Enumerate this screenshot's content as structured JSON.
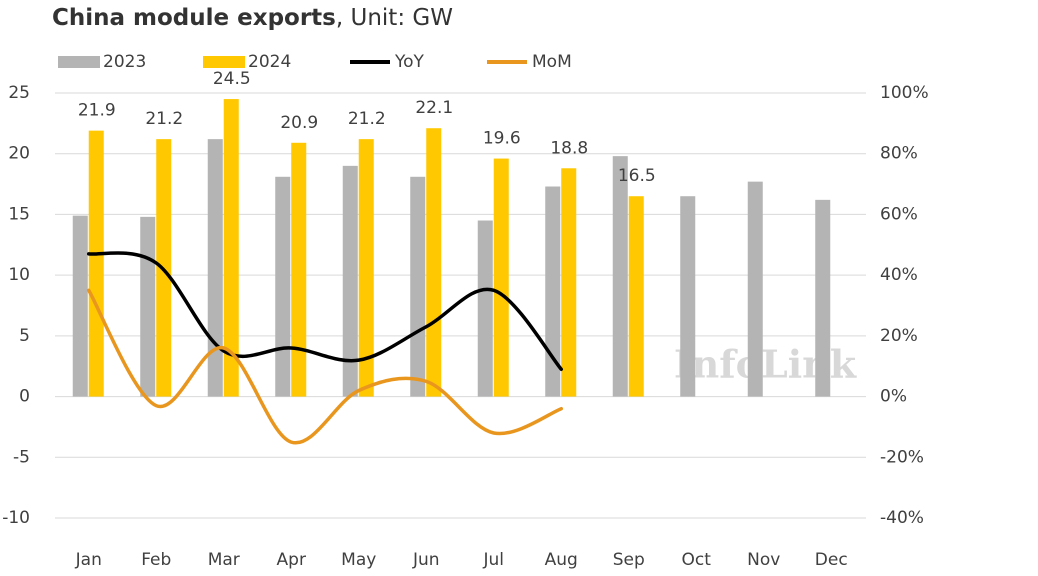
{
  "chart_data": {
    "type": "bar_line",
    "title": "China module exports",
    "title_unit": ", Unit: GW",
    "watermark": "InfoLink",
    "categories": [
      "Jan",
      "Feb",
      "Mar",
      "Apr",
      "May",
      "Jun",
      "Jul",
      "Aug",
      "Sep",
      "Oct",
      "Nov",
      "Dec"
    ],
    "series": [
      {
        "name": "2023",
        "type": "bar",
        "color": "#b4b4b4",
        "values": [
          14.9,
          14.8,
          21.2,
          18.1,
          19.0,
          18.1,
          14.5,
          17.3,
          19.8,
          16.5,
          17.7,
          16.2
        ]
      },
      {
        "name": "2024",
        "type": "bar",
        "color": "#ffc800",
        "data_labels": true,
        "values": [
          21.9,
          21.2,
          24.5,
          20.9,
          21.2,
          22.1,
          19.6,
          18.8,
          16.5,
          null,
          null,
          null
        ]
      },
      {
        "name": "YoY",
        "type": "line",
        "axis": "y2",
        "color": "#000000",
        "values": [
          47,
          44,
          15,
          16,
          12,
          23,
          35,
          9,
          null,
          null,
          null,
          null
        ]
      },
      {
        "name": "MoM",
        "type": "line",
        "axis": "y2",
        "color": "#e8961e",
        "values": [
          35,
          -3,
          16,
          -15,
          2,
          5,
          -12,
          -4,
          null,
          null,
          null,
          null
        ]
      }
    ],
    "ylim": [
      -10,
      25
    ],
    "yticks": [
      -10,
      -5,
      0,
      5,
      10,
      15,
      20,
      25
    ],
    "y2lim": [
      -40,
      100
    ],
    "y2ticks": [
      {
        "value": -40,
        "label": "-40%"
      },
      {
        "value": -20,
        "label": "-20%"
      },
      {
        "value": 0,
        "label": "0%"
      },
      {
        "value": 20,
        "label": "20%"
      },
      {
        "value": 40,
        "label": "40%"
      },
      {
        "value": 60,
        "label": "60%"
      },
      {
        "value": 80,
        "label": "80%"
      },
      {
        "value": 100,
        "label": "100%"
      }
    ],
    "grid": true
  }
}
